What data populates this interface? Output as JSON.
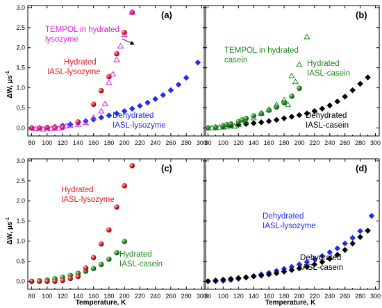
{
  "chart_data": [
    {
      "panel_label": "(a)",
      "type": "scatter",
      "xlabel": "",
      "ylabel_main": "ΔW, μs",
      "ylabel_sup": "-1",
      "xlim": [
        75,
        305
      ],
      "ylim": [
        -0.2,
        3.05
      ],
      "xticks": [
        "80",
        "100",
        "120",
        "140",
        "160",
        "180",
        "200",
        "220",
        "240",
        "260",
        "280",
        "300"
      ],
      "yticks": [
        "0.0",
        "0.5",
        "1.0",
        "1.5",
        "2.0",
        "2.5",
        "3.0"
      ],
      "grid": false,
      "series": [
        {
          "name": "Dehydrated IASL-lysozyme",
          "marker": "diamond",
          "color": "#1f2df0",
          "x": [
            80,
            90,
            100,
            110,
            120,
            130,
            140,
            150,
            160,
            170,
            180,
            190,
            200,
            210,
            220,
            230,
            240,
            250,
            260,
            270,
            280,
            295
          ],
          "y": [
            0.0,
            0.0,
            0.01,
            0.03,
            0.06,
            0.09,
            0.13,
            0.17,
            0.21,
            0.26,
            0.31,
            0.36,
            0.42,
            0.48,
            0.55,
            0.63,
            0.72,
            0.82,
            0.94,
            1.08,
            1.25,
            1.63
          ]
        },
        {
          "name": "Hydrated IASL-lysozyme",
          "marker": "sphere",
          "color": "#e02020",
          "x": [
            80,
            90,
            100,
            110,
            120,
            140,
            160,
            170,
            180,
            190,
            200,
            210
          ],
          "y": [
            0.0,
            0.0,
            0.01,
            0.0,
            0.02,
            0.15,
            0.59,
            0.93,
            1.28,
            1.85,
            2.38,
            2.88
          ]
        },
        {
          "name": "TEMPOL in hydrated lysozyme",
          "marker": "triangle",
          "color": "#e020e0",
          "x": [
            80,
            85,
            90,
            95,
            100,
            105,
            110,
            115,
            120,
            125,
            130,
            140,
            150,
            160,
            170,
            175,
            180,
            185,
            190,
            195,
            200,
            210
          ],
          "y": [
            0.0,
            -0.02,
            0.0,
            -0.03,
            0.0,
            -0.02,
            0.02,
            -0.01,
            0.04,
            0.05,
            0.06,
            0.09,
            0.13,
            0.26,
            0.42,
            0.6,
            1.13,
            1.34,
            1.7,
            2.04,
            2.33,
            2.88
          ]
        }
      ],
      "annotations": [
        "TEMPOL in hydrated lysozyme",
        "Hydrated IASL-lysozyme",
        "Dehydrated IASL-lysozyme"
      ]
    },
    {
      "panel_label": "(b)",
      "type": "scatter",
      "xlabel": "",
      "xlim": [
        75,
        305
      ],
      "ylim": [
        -0.2,
        3.05
      ],
      "xticks": [
        "80",
        "100",
        "120",
        "140",
        "160",
        "180",
        "200",
        "220",
        "240",
        "260",
        "280",
        "300"
      ],
      "grid": false,
      "series": [
        {
          "name": "Dehydrated IASL-casein",
          "marker": "diamond",
          "color": "#000000",
          "x": [
            80,
            90,
            100,
            110,
            120,
            130,
            140,
            150,
            160,
            170,
            180,
            190,
            200,
            210,
            220,
            230,
            240,
            250,
            260,
            270,
            280,
            290
          ],
          "y": [
            0.0,
            0.02,
            0.04,
            0.06,
            0.08,
            0.1,
            0.12,
            0.14,
            0.17,
            0.2,
            0.24,
            0.28,
            0.32,
            0.36,
            0.42,
            0.48,
            0.56,
            0.66,
            0.78,
            0.94,
            1.1,
            1.26
          ]
        },
        {
          "name": "Hydrated IASL-casein",
          "marker": "sphere",
          "color": "#1d8a1d",
          "x": [
            80,
            90,
            100,
            105,
            110,
            120,
            125,
            130,
            140,
            150,
            160,
            170,
            180,
            190,
            200
          ],
          "y": [
            0.0,
            0.02,
            0.06,
            0.08,
            0.1,
            0.16,
            0.2,
            0.24,
            0.3,
            0.36,
            0.44,
            0.52,
            0.63,
            0.79,
            0.99
          ]
        },
        {
          "name": "TEMPOL in hydrated casein",
          "marker": "triangle",
          "color": "#1d8a1d",
          "x": [
            80,
            85,
            90,
            95,
            100,
            105,
            110,
            115,
            120,
            130,
            140,
            150,
            160,
            170,
            180,
            185,
            190,
            195,
            200,
            210
          ],
          "y": [
            0.0,
            0.0,
            0.0,
            0.02,
            0.02,
            0.04,
            0.06,
            0.04,
            0.08,
            0.16,
            0.25,
            0.36,
            0.46,
            0.58,
            0.7,
            0.58,
            1.3,
            1.15,
            1.58,
            2.27
          ]
        }
      ],
      "annotations": [
        "TEMPOL in hydrated casein",
        "Hydrated IASL-casein",
        "Dehydrated IASL-casein"
      ]
    },
    {
      "panel_label": "(c)",
      "type": "scatter",
      "xlabel": "Temperature, K",
      "ylabel_main": "ΔW, μs",
      "ylabel_sup": "-1",
      "xlim": [
        75,
        305
      ],
      "ylim": [
        -0.2,
        3.05
      ],
      "xticks": [
        "80",
        "100",
        "120",
        "140",
        "160",
        "180",
        "200",
        "220",
        "240",
        "260",
        "280",
        "300"
      ],
      "yticks": [
        "0.0",
        "0.5",
        "1.0",
        "1.5",
        "2.0",
        "2.5",
        "3.0"
      ],
      "grid": false,
      "series": [
        {
          "name": "Hydrated IASL-casein",
          "marker": "sphere",
          "color": "#1d8a1d",
          "x": [
            80,
            90,
            100,
            110,
            120,
            130,
            140,
            150,
            160,
            170,
            180,
            190,
            200
          ],
          "y": [
            0.0,
            0.01,
            0.03,
            0.06,
            0.1,
            0.15,
            0.2,
            0.25,
            0.32,
            0.42,
            0.55,
            0.71,
            0.99
          ]
        },
        {
          "name": "Hydrated IASL-lysozyme",
          "marker": "sphere",
          "color": "#e02020",
          "x": [
            80,
            90,
            100,
            110,
            120,
            130,
            140,
            150,
            160,
            170,
            180,
            190,
            200,
            210
          ],
          "y": [
            0.0,
            0.0,
            0.0,
            0.0,
            0.02,
            0.07,
            0.12,
            0.33,
            0.59,
            0.93,
            1.28,
            1.85,
            2.38,
            2.88
          ]
        }
      ],
      "annotations": [
        "Hydrated IASL-lysozyme",
        "Hydrated IASL-casein"
      ]
    },
    {
      "panel_label": "(d)",
      "type": "scatter",
      "xlabel": "Temperature, K",
      "xlim": [
        75,
        305
      ],
      "ylim": [
        -0.2,
        3.05
      ],
      "xticks": [
        "80",
        "100",
        "120",
        "140",
        "160",
        "180",
        "200",
        "220",
        "240",
        "260",
        "280",
        "300"
      ],
      "grid": false,
      "series": [
        {
          "name": "Dehydrated IASL-lysozyme",
          "marker": "diamond",
          "color": "#1f2df0",
          "x": [
            80,
            90,
            100,
            110,
            120,
            130,
            140,
            150,
            160,
            170,
            180,
            190,
            200,
            210,
            220,
            230,
            240,
            250,
            260,
            270,
            280,
            295
          ],
          "y": [
            0.0,
            0.0,
            0.01,
            0.03,
            0.06,
            0.09,
            0.13,
            0.17,
            0.21,
            0.26,
            0.31,
            0.36,
            0.42,
            0.48,
            0.55,
            0.63,
            0.72,
            0.82,
            0.94,
            1.08,
            1.25,
            1.63
          ]
        },
        {
          "name": "Dehydrated IASL-casein",
          "marker": "diamond",
          "color": "#000000",
          "x": [
            80,
            90,
            100,
            110,
            120,
            130,
            140,
            150,
            160,
            170,
            180,
            190,
            200,
            210,
            220,
            230,
            240,
            250,
            260,
            270,
            280,
            290
          ],
          "y": [
            0.0,
            0.02,
            0.04,
            0.06,
            0.08,
            0.1,
            0.12,
            0.14,
            0.17,
            0.2,
            0.24,
            0.28,
            0.32,
            0.36,
            0.42,
            0.48,
            0.56,
            0.66,
            0.78,
            0.94,
            1.1,
            1.26
          ]
        }
      ],
      "annotations": [
        "Dehydrated IASL-lysozyme",
        "Dehydrated IASL-casein"
      ]
    }
  ],
  "label_lines": {
    "a_tempol": [
      "TEMPOL in hydrated",
      "lysozyme"
    ],
    "a_hyd": [
      "Hydrated",
      "IASL-lysozyme"
    ],
    "a_dehyd": [
      "Dehydrated",
      "IASL-lysozyme"
    ],
    "b_tempol": [
      "TEMPOL in hydrated",
      "casein"
    ],
    "b_hyd": [
      "Hydrated",
      "IASL-casein"
    ],
    "b_dehyd": [
      "Dehydrated",
      "IASL-casein"
    ],
    "c_lyso": [
      "Hydrated",
      "IASL-lysozyme"
    ],
    "c_casein": [
      "Hydrated",
      "IASL-casein"
    ],
    "d_lyso": [
      "Dehydrated",
      "IASL-lysozyme"
    ],
    "d_casein": [
      "Dehydrated",
      "IASL-casein"
    ]
  },
  "colors": {
    "blue": "#1f2df0",
    "red": "#e02020",
    "magenta": "#e020e0",
    "green": "#1d8a1d",
    "black": "#000000"
  }
}
